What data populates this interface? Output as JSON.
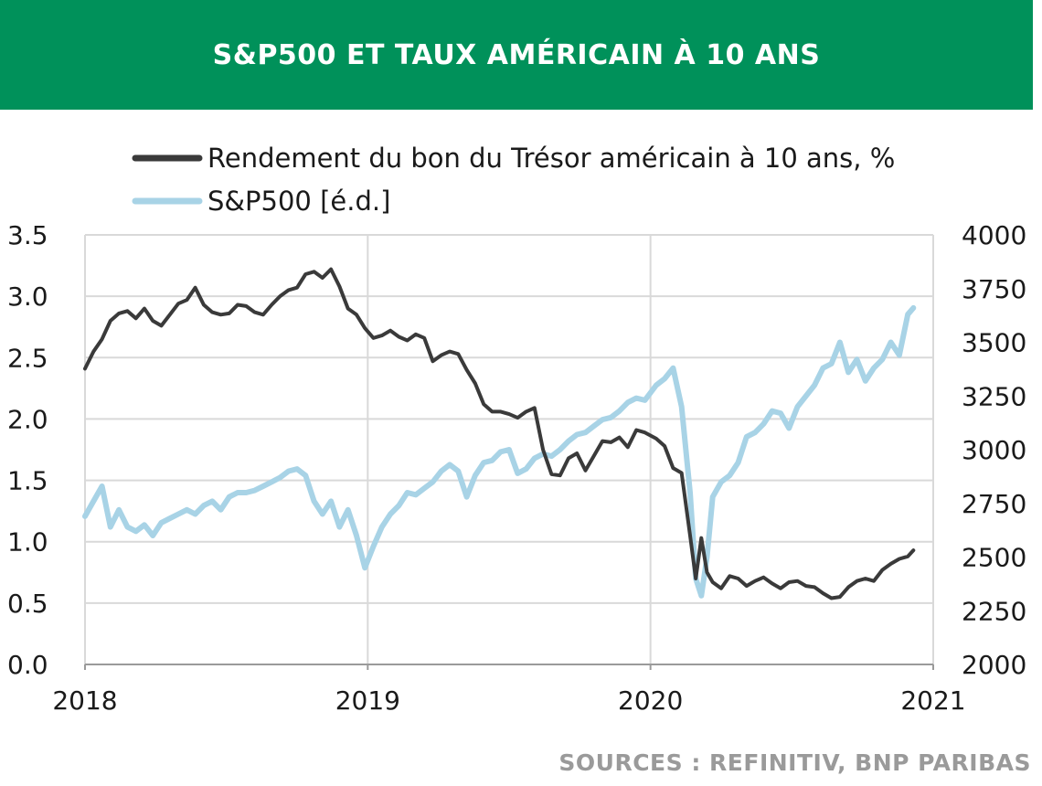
{
  "header": {
    "title": "S&P500 ET TAUX AMÉRICAIN À 10 ANS",
    "background_color": "#00915A"
  },
  "source": "SOURCES : REFINITIV, BNP PARIBAS",
  "chart_data": {
    "type": "line",
    "title": "S&P500 ET TAUX AMÉRICAIN À 10 ANS",
    "xlabel": "",
    "x_ticks": [
      "2018",
      "2019",
      "2020",
      "2021"
    ],
    "xlim": [
      2018,
      2021
    ],
    "y_left": {
      "label": "",
      "lim": [
        0,
        3.5
      ],
      "ticks": [
        "0.0",
        "0.5",
        "1.0",
        "1.5",
        "2.0",
        "2.5",
        "3.0",
        "3.5"
      ]
    },
    "y_right": {
      "label": "",
      "lim": [
        2000,
        4000
      ],
      "ticks": [
        "2000",
        "2250",
        "2500",
        "2750",
        "3000",
        "3250",
        "3500",
        "3750",
        "4000"
      ]
    },
    "grid": true,
    "legend_position": "top",
    "series": [
      {
        "name": "Rendement du bon du Trésor américain à 10 ans, %",
        "axis": "left",
        "color": "#3a3a3a",
        "x": [
          2018.0,
          2018.03,
          2018.06,
          2018.09,
          2018.12,
          2018.15,
          2018.18,
          2018.21,
          2018.24,
          2018.27,
          2018.3,
          2018.33,
          2018.36,
          2018.39,
          2018.42,
          2018.45,
          2018.48,
          2018.51,
          2018.54,
          2018.57,
          2018.6,
          2018.63,
          2018.66,
          2018.69,
          2018.72,
          2018.75,
          2018.78,
          2018.81,
          2018.84,
          2018.87,
          2018.9,
          2018.93,
          2018.96,
          2018.99,
          2019.02,
          2019.05,
          2019.08,
          2019.11,
          2019.14,
          2019.17,
          2019.2,
          2019.23,
          2019.26,
          2019.29,
          2019.32,
          2019.35,
          2019.38,
          2019.41,
          2019.44,
          2019.47,
          2019.5,
          2019.53,
          2019.56,
          2019.59,
          2019.62,
          2019.65,
          2019.68,
          2019.71,
          2019.74,
          2019.77,
          2019.8,
          2019.83,
          2019.86,
          2019.89,
          2019.92,
          2019.95,
          2019.98,
          2020.02,
          2020.05,
          2020.08,
          2020.11,
          2020.14,
          2020.16,
          2020.18,
          2020.2,
          2020.22,
          2020.25,
          2020.28,
          2020.31,
          2020.34,
          2020.37,
          2020.4,
          2020.43,
          2020.46,
          2020.49,
          2020.52,
          2020.55,
          2020.58,
          2020.61,
          2020.64,
          2020.67,
          2020.7,
          2020.73,
          2020.76,
          2020.79,
          2020.82,
          2020.85,
          2020.88,
          2020.91,
          2020.93
        ],
        "y": [
          2.41,
          2.55,
          2.65,
          2.8,
          2.86,
          2.88,
          2.82,
          2.9,
          2.8,
          2.76,
          2.85,
          2.94,
          2.97,
          3.07,
          2.93,
          2.87,
          2.85,
          2.86,
          2.93,
          2.92,
          2.87,
          2.85,
          2.93,
          3.0,
          3.05,
          3.07,
          3.18,
          3.2,
          3.15,
          3.22,
          3.08,
          2.9,
          2.85,
          2.74,
          2.66,
          2.68,
          2.72,
          2.67,
          2.64,
          2.69,
          2.66,
          2.47,
          2.52,
          2.55,
          2.53,
          2.4,
          2.29,
          2.12,
          2.06,
          2.06,
          2.04,
          2.01,
          2.06,
          2.09,
          1.75,
          1.55,
          1.54,
          1.68,
          1.72,
          1.58,
          1.7,
          1.82,
          1.81,
          1.85,
          1.77,
          1.91,
          1.89,
          1.84,
          1.78,
          1.6,
          1.56,
          1.05,
          0.7,
          1.03,
          0.75,
          0.67,
          0.62,
          0.72,
          0.7,
          0.64,
          0.68,
          0.71,
          0.66,
          0.62,
          0.67,
          0.68,
          0.64,
          0.63,
          0.58,
          0.54,
          0.55,
          0.63,
          0.68,
          0.7,
          0.68,
          0.77,
          0.82,
          0.86,
          0.88,
          0.93
        ]
      },
      {
        "name": "S&P500 [é.d.]",
        "axis": "right",
        "color": "#a8d3e6",
        "x": [
          2018.0,
          2018.03,
          2018.06,
          2018.09,
          2018.12,
          2018.15,
          2018.18,
          2018.21,
          2018.24,
          2018.27,
          2018.3,
          2018.33,
          2018.36,
          2018.39,
          2018.42,
          2018.45,
          2018.48,
          2018.51,
          2018.54,
          2018.57,
          2018.6,
          2018.63,
          2018.66,
          2018.69,
          2018.72,
          2018.75,
          2018.78,
          2018.81,
          2018.84,
          2018.87,
          2018.9,
          2018.93,
          2018.96,
          2018.99,
          2019.02,
          2019.05,
          2019.08,
          2019.11,
          2019.14,
          2019.17,
          2019.2,
          2019.23,
          2019.26,
          2019.29,
          2019.32,
          2019.35,
          2019.38,
          2019.41,
          2019.44,
          2019.47,
          2019.5,
          2019.53,
          2019.56,
          2019.59,
          2019.62,
          2019.65,
          2019.68,
          2019.71,
          2019.74,
          2019.77,
          2019.8,
          2019.83,
          2019.86,
          2019.89,
          2019.92,
          2019.95,
          2019.98,
          2020.02,
          2020.05,
          2020.08,
          2020.11,
          2020.14,
          2020.16,
          2020.18,
          2020.2,
          2020.22,
          2020.25,
          2020.28,
          2020.31,
          2020.34,
          2020.37,
          2020.4,
          2020.43,
          2020.46,
          2020.49,
          2020.52,
          2020.55,
          2020.58,
          2020.61,
          2020.64,
          2020.67,
          2020.7,
          2020.73,
          2020.76,
          2020.79,
          2020.82,
          2020.85,
          2020.88,
          2020.91,
          2020.93
        ],
        "y": [
          2690,
          2760,
          2830,
          2640,
          2720,
          2640,
          2620,
          2650,
          2600,
          2660,
          2680,
          2700,
          2720,
          2700,
          2740,
          2760,
          2720,
          2780,
          2800,
          2800,
          2810,
          2830,
          2850,
          2870,
          2900,
          2910,
          2880,
          2760,
          2700,
          2760,
          2640,
          2720,
          2600,
          2450,
          2550,
          2640,
          2700,
          2740,
          2800,
          2790,
          2820,
          2850,
          2900,
          2930,
          2900,
          2780,
          2880,
          2940,
          2950,
          2990,
          3000,
          2890,
          2910,
          2960,
          2980,
          2970,
          3000,
          3040,
          3070,
          3080,
          3110,
          3140,
          3150,
          3180,
          3220,
          3240,
          3230,
          3300,
          3330,
          3380,
          3200,
          2800,
          2400,
          2320,
          2500,
          2780,
          2850,
          2880,
          2940,
          3060,
          3080,
          3120,
          3180,
          3170,
          3100,
          3200,
          3250,
          3300,
          3380,
          3400,
          3500,
          3360,
          3420,
          3320,
          3380,
          3420,
          3500,
          3440,
          3630,
          3660
        ]
      }
    ]
  }
}
